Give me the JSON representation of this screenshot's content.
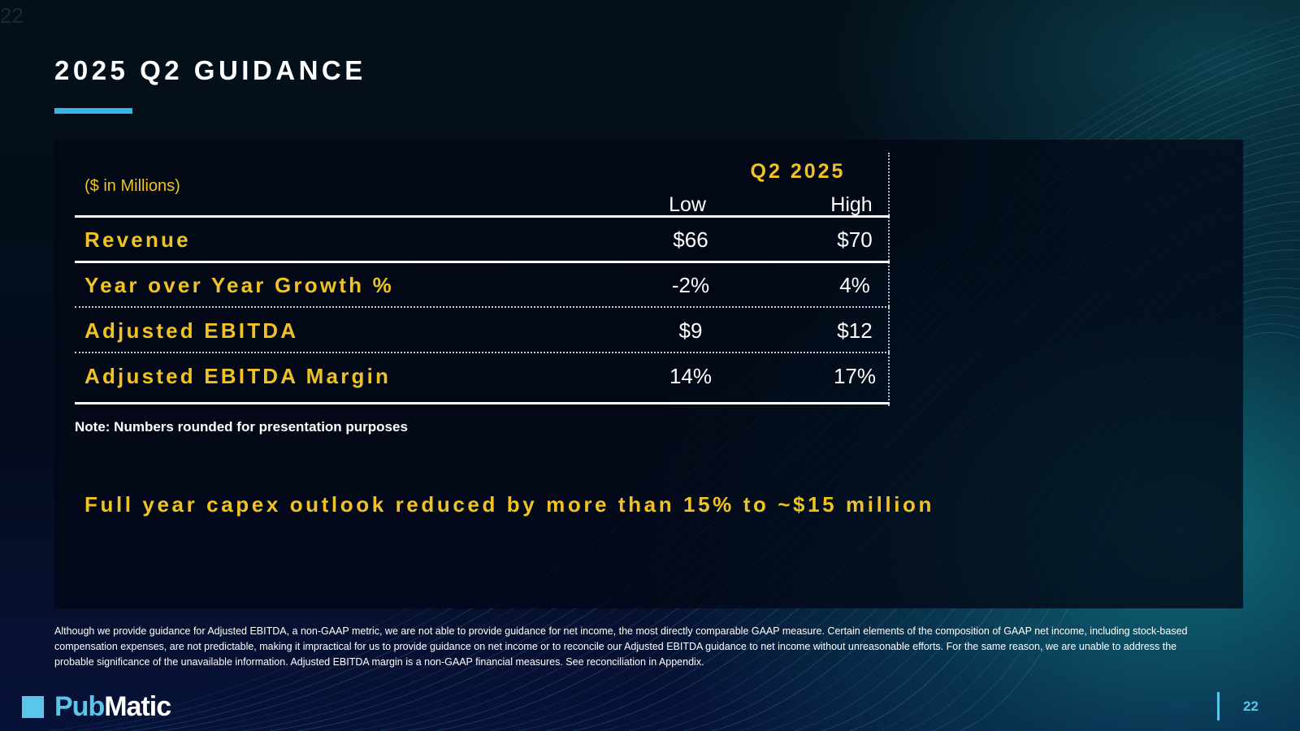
{
  "corner_number": "22",
  "title": "2025 Q2 GUIDANCE",
  "table": {
    "unit_label": "($ in Millions)",
    "period_label": "Q2 2025",
    "col_low": "Low",
    "col_high": "High",
    "rows": [
      {
        "label": "Revenue",
        "low": "$66",
        "high": "$70"
      },
      {
        "label": "Year over Year Growth %",
        "low": "-2%",
        "high": "4%"
      },
      {
        "label": "Adjusted EBITDA",
        "low": "$9",
        "high": "$12"
      },
      {
        "label": "Adjusted EBITDA Margin",
        "low": "14%",
        "high": "17%"
      }
    ]
  },
  "note": "Note: Numbers rounded for presentation purposes",
  "capex": "Full year capex outlook reduced by more than 15% to ~$15 million",
  "disclaimer": "Although we provide guidance for Adjusted EBITDA, a non-GAAP metric, we are not able to provide guidance for net income, the most directly comparable GAAP measure. Certain elements of the composition of GAAP net income, including stock-based compensation expenses, are not predictable, making it impractical for us to provide guidance on net income or to reconcile our Adjusted EBITDA guidance to net income without unreasonable efforts. For the same reason, we are unable to address the probable significance of the unavailable information.  Adjusted EBITDA margin is a non-GAAP financial measures. See reconciliation in Appendix.",
  "footer": {
    "logo_pub": "Pub",
    "logo_matic": "Matic",
    "page_number": "22"
  },
  "colors": {
    "accent_yellow": "#f0c323",
    "accent_blue": "#35b6e6",
    "logo_blue": "#59c6ea",
    "background_dark": "#050c1e"
  }
}
